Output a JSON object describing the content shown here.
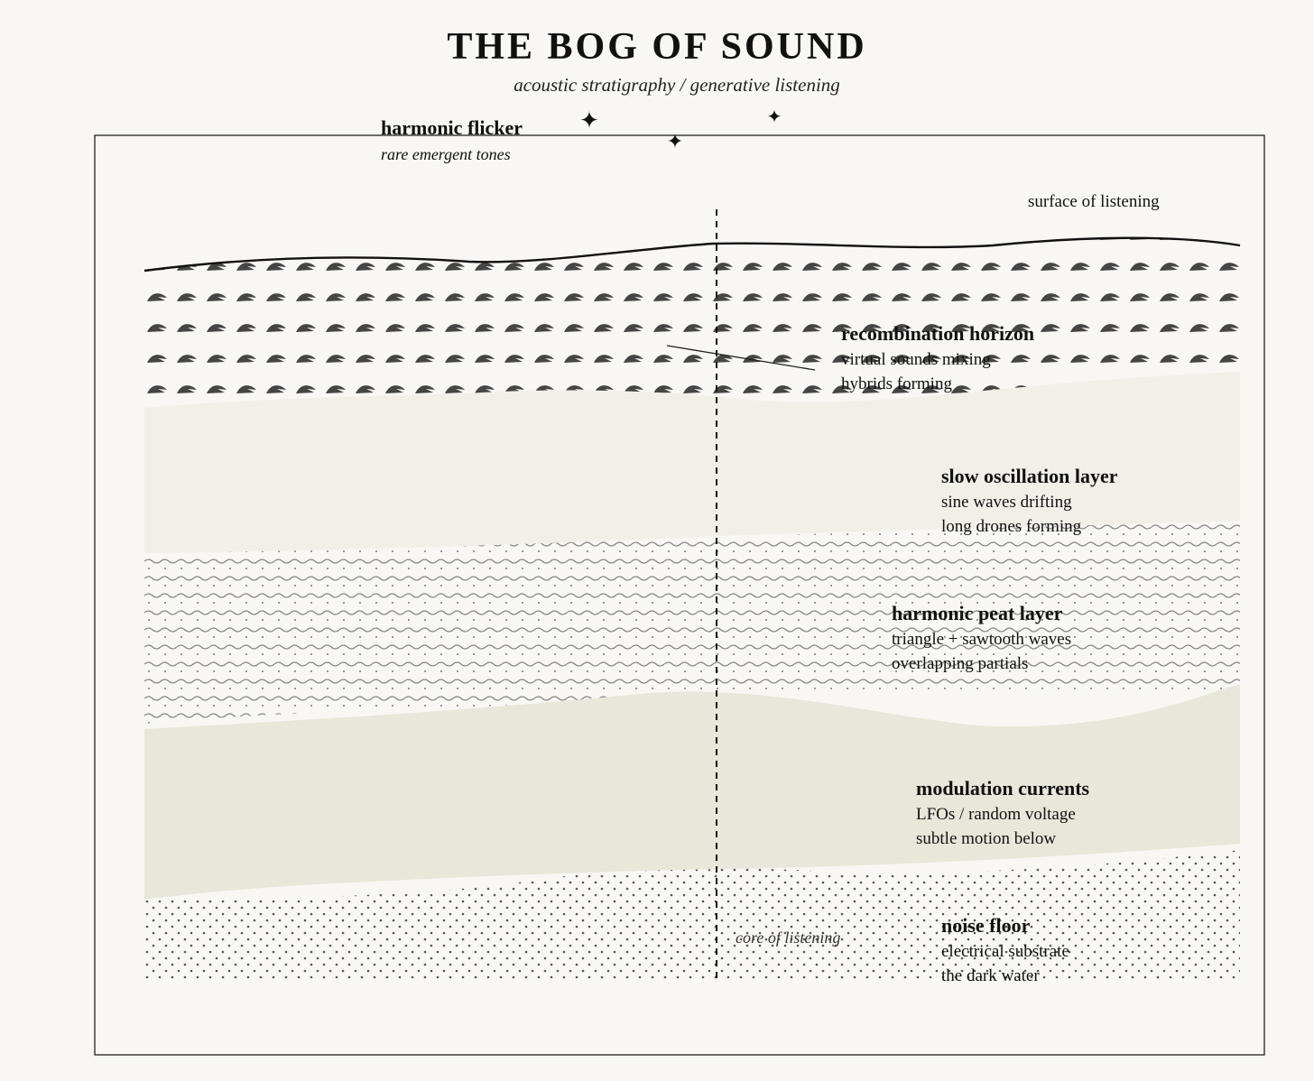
{
  "header": {
    "title": "THE BOG OF SOUND",
    "subtitle": "acoustic stratigraphy / generative listening"
  },
  "flicker": {
    "title": "harmonic flicker",
    "subtitle": "rare emergent tones",
    "star_glyph": "✦"
  },
  "markers": {
    "surface": "surface of listening",
    "core": "core of listening"
  },
  "layers": {
    "recombination": {
      "title": "recombination horizon",
      "line1": "virtual sounds mixing",
      "line2": "hybrids forming"
    },
    "oscillation": {
      "title": "slow oscillation layer",
      "line1": "sine waves drifting",
      "line2": "long drones forming"
    },
    "peat": {
      "title": "harmonic peat layer",
      "line1": "triangle + sawtooth waves",
      "line2": "overlapping partials"
    },
    "modulation": {
      "title": "modulation currents",
      "line1": "LFOs / random voltage",
      "line2": "subtle motion below"
    },
    "noise": {
      "title": "noise floor",
      "line1": "electrical substrate",
      "line2": "the dark water"
    }
  },
  "colors": {
    "background": "#f8f7f3",
    "oscillation_band": "#f2efe9",
    "modulation_band": "#e9e6da",
    "ink": "#111111",
    "mark": "#444444"
  }
}
